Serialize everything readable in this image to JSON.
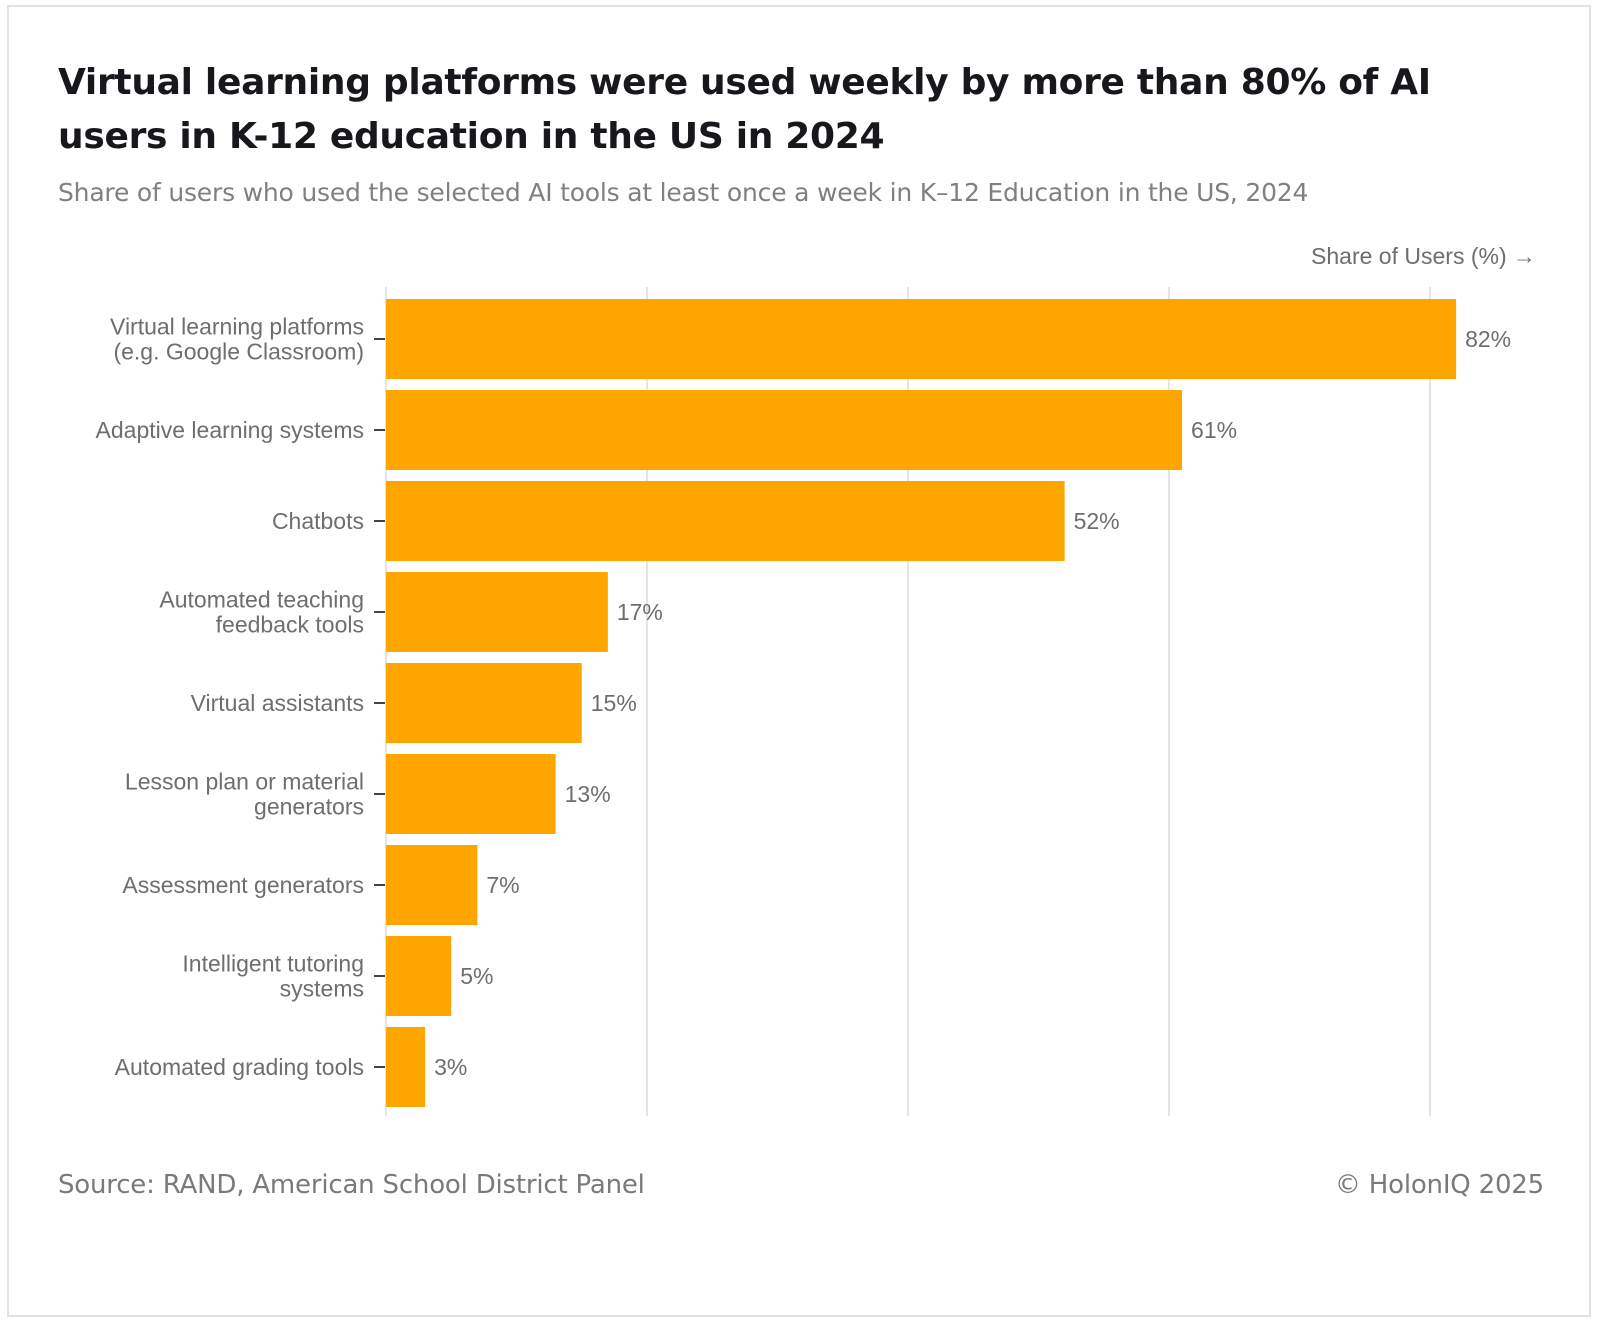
{
  "header": {
    "title": "Virtual learning platforms were used weekly by more than 80% of AI users in K-12 education in the US in 2024",
    "subtitle": "Share of users who used the selected AI tools at least once a week in K–12 Education in the US, 2024"
  },
  "footer": {
    "source": "Source: RAND, American School District Panel",
    "copyright": "© HolonIQ 2025"
  },
  "colors": {
    "bar": "#FFA500",
    "grid": "#e4e4e4",
    "label": "#6e6e6e",
    "title": "#17171c"
  },
  "chart_data": {
    "type": "bar",
    "orientation": "horizontal",
    "title": "Virtual learning platforms were used weekly by more than 80% of AI users in K-12 education in the US in 2024",
    "subtitle": "Share of users who used the selected AI tools at least once a week in K–12 Education in the US, 2024",
    "xlabel": "Share of Users (%) →",
    "ylabel": "",
    "xlim": [
      0,
      80
    ],
    "grid_ticks": [
      0,
      20,
      40,
      60,
      80
    ],
    "grid": true,
    "tick_labels_visible": false,
    "categories": [
      [
        "Virtual learning platforms",
        "(e.g. Google Classroom)"
      ],
      [
        "Adaptive learning systems"
      ],
      [
        "Chatbots"
      ],
      [
        "Automated teaching",
        "feedback tools"
      ],
      [
        "Virtual assistants"
      ],
      [
        "Lesson plan or material",
        "generators"
      ],
      [
        "Assessment generators"
      ],
      [
        "Intelligent tutoring",
        "systems"
      ],
      [
        "Automated grading tools"
      ]
    ],
    "values": [
      82,
      61,
      52,
      17,
      15,
      13,
      7,
      5,
      3
    ],
    "value_labels": [
      "82%",
      "61%",
      "52%",
      "17%",
      "15%",
      "13%",
      "7%",
      "5%",
      "3%"
    ]
  }
}
